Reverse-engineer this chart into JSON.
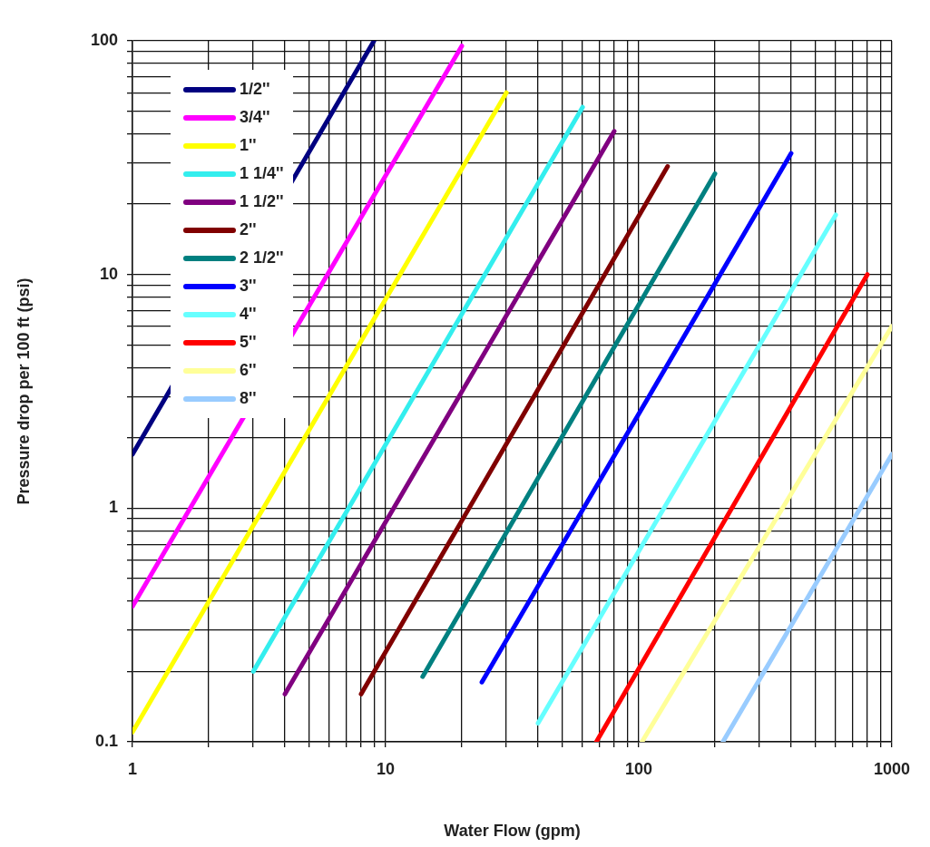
{
  "chart_data": {
    "type": "line",
    "xlabel": "Water Flow (gpm)",
    "ylabel": "Pressure drop per 100 ft (psi)",
    "log": "xy",
    "grid": true,
    "legend": "top left",
    "marker": "none",
    "line_style": "solid",
    "xlim": [
      1,
      1000
    ],
    "ylim": [
      0.1,
      100
    ],
    "xticks": [
      1,
      {
        "value": 2,
        "label": null
      },
      {
        "value": 3,
        "label": null
      },
      {
        "value": 4,
        "label": null
      },
      {
        "value": 5,
        "label": null
      },
      {
        "value": 6,
        "label": null
      },
      {
        "value": 7,
        "label": null
      },
      {
        "value": 8,
        "label": null
      },
      {
        "value": 9,
        "label": null
      },
      10,
      {
        "value": 20,
        "label": null
      },
      {
        "value": 30,
        "label": null
      },
      {
        "value": 40,
        "label": null
      },
      {
        "value": 50,
        "label": null
      },
      {
        "value": 60,
        "label": null
      },
      {
        "value": 70,
        "label": null
      },
      {
        "value": 80,
        "label": null
      },
      {
        "value": 90,
        "label": null
      },
      100,
      {
        "value": 200,
        "label": null
      },
      {
        "value": 300,
        "label": null
      },
      {
        "value": 400,
        "label": null
      },
      {
        "value": 500,
        "label": null
      },
      {
        "value": 600,
        "label": null
      },
      {
        "value": 700,
        "label": null
      },
      {
        "value": 800,
        "label": null
      },
      {
        "value": 900,
        "label": null
      },
      1000
    ],
    "yticks": [
      0.1,
      {
        "value": 0.2,
        "label": null
      },
      {
        "value": 0.3,
        "label": null
      },
      {
        "value": 0.4,
        "label": null
      },
      {
        "value": 0.5,
        "label": null
      },
      {
        "value": 0.6,
        "label": null
      },
      {
        "value": 0.7,
        "label": null
      },
      {
        "value": 0.8,
        "label": null
      },
      {
        "value": 0.9,
        "label": null
      },
      1,
      {
        "value": 2,
        "label": null
      },
      {
        "value": 3,
        "label": null
      },
      {
        "value": 4,
        "label": null
      },
      {
        "value": 5,
        "label": null
      },
      {
        "value": 6,
        "label": null
      },
      {
        "value": 7,
        "label": null
      },
      {
        "value": 8,
        "label": null
      },
      {
        "value": 9,
        "label": null
      },
      10,
      {
        "value": 20,
        "label": null
      },
      {
        "value": 30,
        "label": null
      },
      {
        "value": 40,
        "label": null
      },
      {
        "value": 50,
        "label": null
      },
      {
        "value": 60,
        "label": null
      },
      {
        "value": 70,
        "label": null
      },
      {
        "value": 80,
        "label": null
      },
      {
        "value": 90,
        "label": null
      },
      100
    ],
    "series": [
      {
        "name": "1/2''",
        "color": "#000080",
        "x": [
          1,
          9
        ],
        "values": [
          1.7,
          100
        ]
      },
      {
        "name": "3/4''",
        "color": "#ff00ff",
        "x": [
          1,
          20
        ],
        "values": [
          0.38,
          95
        ]
      },
      {
        "name": "1''",
        "color": "#ffff00",
        "x": [
          1,
          30
        ],
        "values": [
          0.11,
          60
        ]
      },
      {
        "name": "1 1/4''",
        "color": "#33eeee",
        "x": [
          3,
          60
        ],
        "values": [
          0.2,
          52
        ]
      },
      {
        "name": "1 1/2''",
        "color": "#800080",
        "x": [
          4,
          80
        ],
        "values": [
          0.16,
          41
        ]
      },
      {
        "name": "2''",
        "color": "#800000",
        "x": [
          8,
          130
        ],
        "values": [
          0.16,
          29
        ]
      },
      {
        "name": "2 1/2''",
        "color": "#008080",
        "x": [
          14,
          200
        ],
        "values": [
          0.19,
          27
        ]
      },
      {
        "name": "3''",
        "color": "#0000ff",
        "x": [
          24,
          400
        ],
        "values": [
          0.18,
          33
        ]
      },
      {
        "name": "4''",
        "color": "#66ffff",
        "x": [
          40,
          600
        ],
        "values": [
          0.12,
          18
        ]
      },
      {
        "name": "5''",
        "color": "#ff0000",
        "x": [
          68,
          800
        ],
        "values": [
          0.1,
          10
        ]
      },
      {
        "name": "6''",
        "color": "#ffff99",
        "x": [
          103,
          1000
        ],
        "values": [
          0.1,
          6
        ]
      },
      {
        "name": "8''",
        "color": "#99ccff",
        "x": [
          215,
          1000
        ],
        "values": [
          0.1,
          1.7
        ]
      }
    ]
  }
}
